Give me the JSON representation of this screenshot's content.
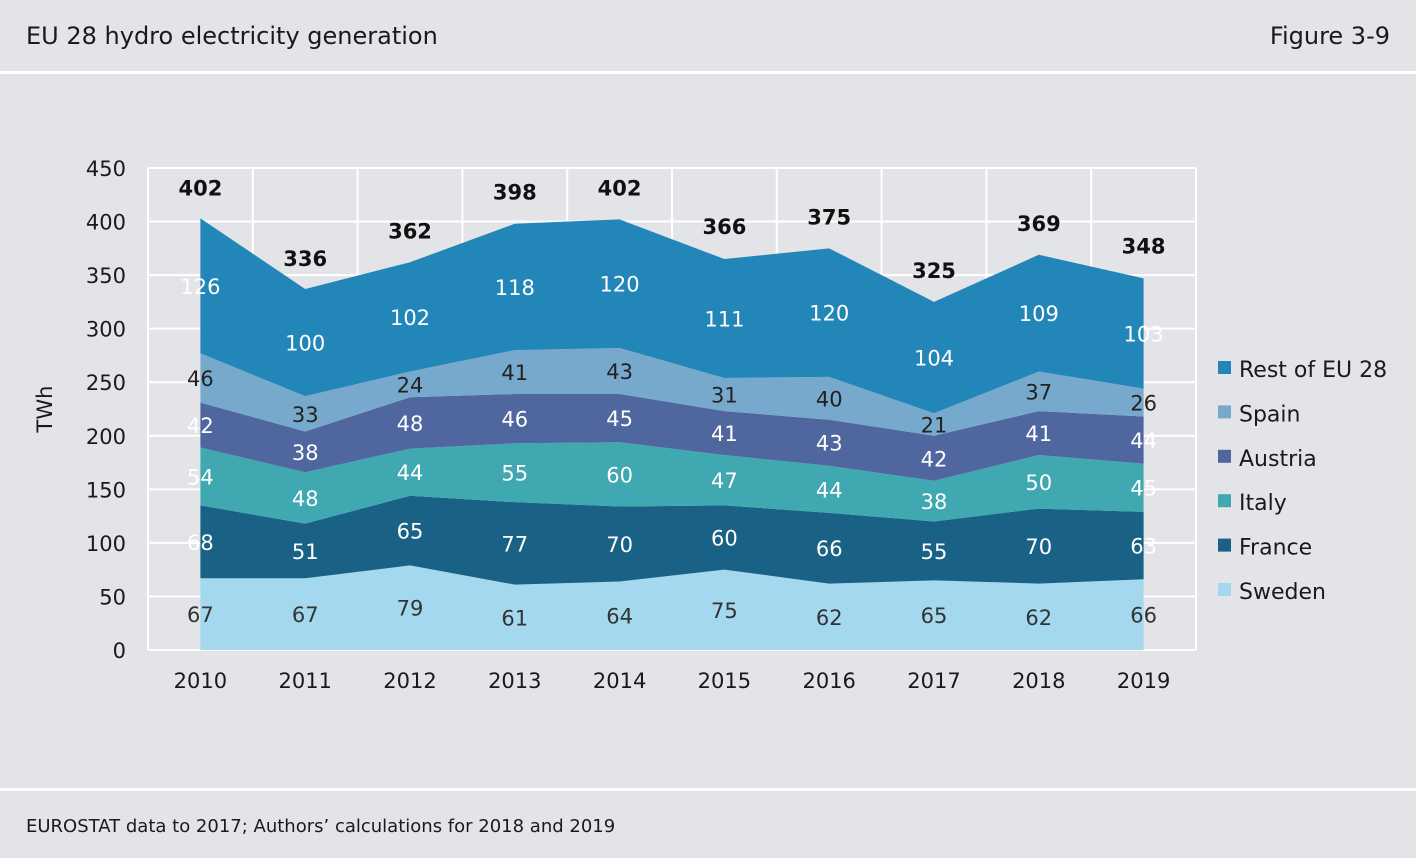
{
  "header": {
    "title": "EU 28 hydro electricity generation",
    "figure": "Figure 3-9"
  },
  "footer": {
    "source": "EUROSTAT data to 2017; Authors’ calculations for 2018 and 2019"
  },
  "chart_data": {
    "type": "area",
    "stacked": true,
    "title": "EU 28 hydro electricity generation",
    "xlabel": "",
    "ylabel": "TWh",
    "ylim": [
      0,
      450
    ],
    "yticks": [
      0,
      50,
      100,
      150,
      200,
      250,
      300,
      350,
      400,
      450
    ],
    "grid": true,
    "legend": "right",
    "categories": [
      "2010",
      "2011",
      "2012",
      "2013",
      "2014",
      "2015",
      "2016",
      "2017",
      "2018",
      "2019"
    ],
    "series": [
      {
        "name": "Sweden",
        "color": "#a4d8ee",
        "label_color": "#333333",
        "values": [
          67,
          67,
          79,
          61,
          64,
          75,
          62,
          65,
          62,
          66
        ]
      },
      {
        "name": "France",
        "color": "#1a6285",
        "label_color": "#ffffff",
        "values": [
          68,
          51,
          65,
          77,
          70,
          60,
          66,
          55,
          70,
          63
        ]
      },
      {
        "name": "Italy",
        "color": "#3fa8b0",
        "label_color": "#ffffff",
        "values": [
          54,
          48,
          44,
          55,
          60,
          47,
          44,
          38,
          50,
          45
        ]
      },
      {
        "name": "Austria",
        "color": "#50669e",
        "label_color": "#ffffff",
        "values": [
          42,
          38,
          48,
          46,
          45,
          41,
          43,
          42,
          41,
          44
        ]
      },
      {
        "name": "Spain",
        "color": "#77a9cc",
        "label_color": "#222222",
        "values": [
          46,
          33,
          24,
          41,
          43,
          31,
          40,
          21,
          37,
          26
        ]
      },
      {
        "name": "Rest of EU 28",
        "color": "#2386b8",
        "label_color": "#ffffff",
        "values": [
          126,
          100,
          102,
          118,
          120,
          111,
          120,
          104,
          109,
          103
        ]
      }
    ],
    "totals": [
      402,
      336,
      362,
      398,
      402,
      366,
      375,
      325,
      369,
      348
    ]
  }
}
